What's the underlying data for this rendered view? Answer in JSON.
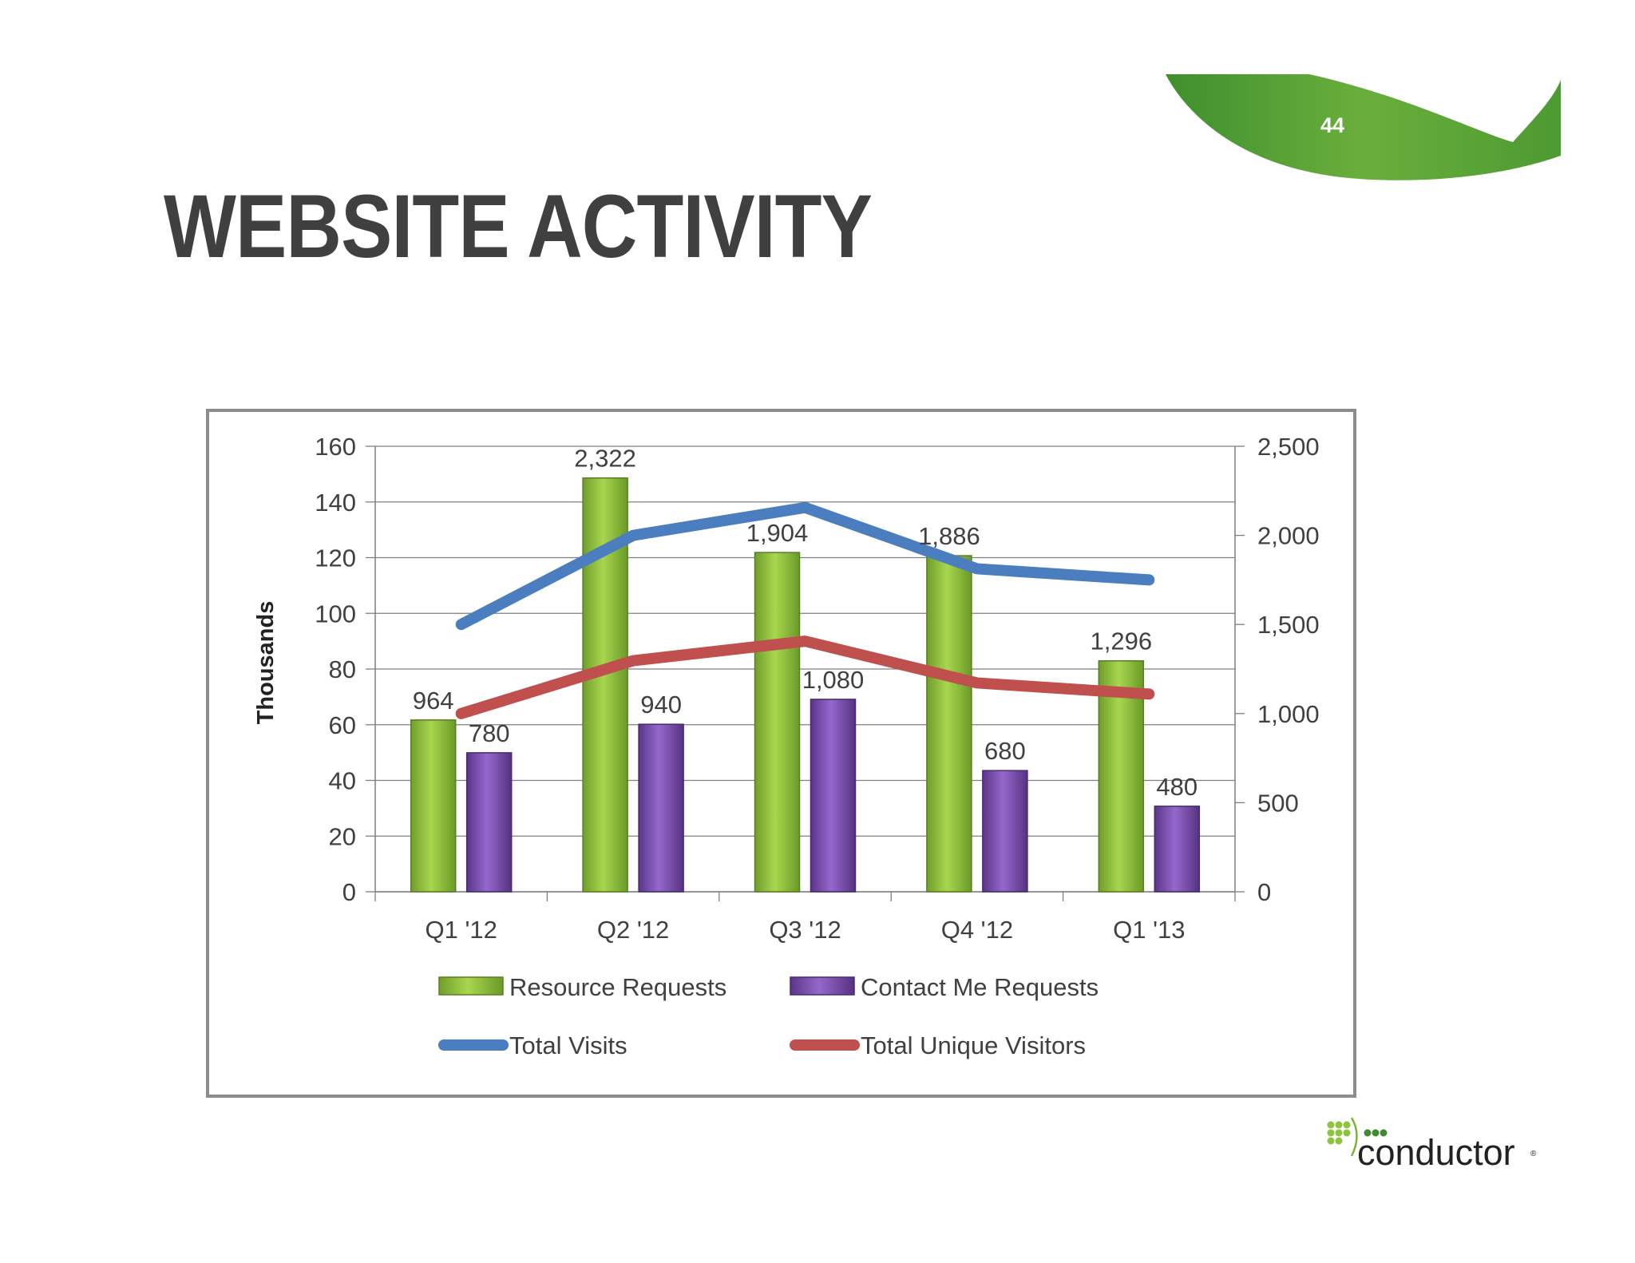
{
  "slide": {
    "title": "WEBSITE ACTIVITY",
    "page_number": "44",
    "logo_text": "conductor",
    "accent_color": "#6aa83a"
  },
  "chart_data": {
    "type": "bar",
    "categories": [
      "Q1 '12",
      "Q2 '12",
      "Q3 '12",
      "Q4 '12",
      "Q1 '13"
    ],
    "y_left": {
      "label": "Thousands",
      "range": [
        0,
        160
      ],
      "ticks": [
        "0",
        "20",
        "40",
        "60",
        "80",
        "100",
        "120",
        "140",
        "160"
      ]
    },
    "y_right": {
      "range": [
        0,
        2500
      ],
      "ticks": [
        "0",
        "500",
        "1,000",
        "1,500",
        "2,000",
        "2,500"
      ]
    },
    "grid": true,
    "legend_position": "bottom",
    "series": [
      {
        "name": "Resource Requests",
        "type": "bar",
        "axis": "right",
        "color": "#8cc43c",
        "values": [
          964,
          2322,
          1904,
          1886,
          1296
        ],
        "labels": [
          "964",
          "2,322",
          "1,904",
          "1,886",
          "1,296"
        ]
      },
      {
        "name": "Contact Me Requests",
        "type": "bar",
        "axis": "right",
        "color": "#7e4fb0",
        "values": [
          780,
          940,
          1080,
          680,
          480
        ],
        "labels": [
          "780",
          "940",
          "1,080",
          "680",
          "480"
        ]
      },
      {
        "name": "Total Visits",
        "type": "line",
        "axis": "left",
        "color": "#4a7ebf",
        "values": [
          96,
          128,
          138,
          116,
          112
        ]
      },
      {
        "name": "Total Unique Visitors",
        "type": "line",
        "axis": "left",
        "color": "#c0504d",
        "values": [
          64,
          83,
          90,
          75,
          71
        ]
      }
    ]
  }
}
